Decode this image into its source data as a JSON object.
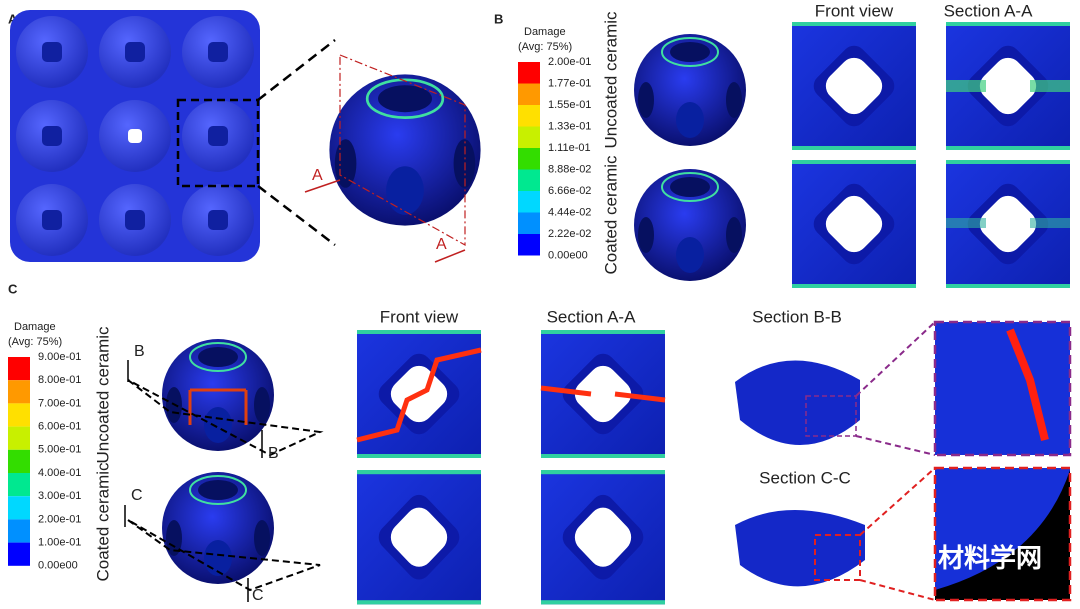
{
  "panel_a": {
    "label": "A",
    "section_marks": [
      "A",
      "A"
    ]
  },
  "panel_b": {
    "label": "B",
    "legend": {
      "title": "Damage",
      "subtitle": "(Avg: 75%)",
      "labels": [
        "2.00e-01",
        "1.77e-01",
        "1.55e-01",
        "1.33e-01",
        "1.11e-01",
        "8.88e-02",
        "6.66e-02",
        "4.44e-02",
        "2.22e-02",
        "0.00e00"
      ],
      "colors": [
        "#ff0000",
        "#ff9900",
        "#ffe000",
        "#c8f000",
        "#33dd00",
        "#00e890",
        "#00d8ff",
        "#0090ff",
        "#0000ff"
      ]
    },
    "rows": [
      "Uncoated ceramic",
      "Coated ceramic"
    ],
    "columns": [
      "Front view",
      "Section A-A"
    ]
  },
  "panel_c": {
    "label": "C",
    "legend": {
      "title": "Damage",
      "subtitle": "(Avg: 75%)",
      "labels": [
        "9.00e-01",
        "8.00e-01",
        "7.00e-01",
        "6.00e-01",
        "5.00e-01",
        "4.00e-01",
        "3.00e-01",
        "2.00e-01",
        "1.00e-01",
        "0.00e00"
      ],
      "colors": [
        "#ff0000",
        "#ff9900",
        "#ffe000",
        "#c8f000",
        "#33dd00",
        "#00e890",
        "#00d8ff",
        "#0090ff",
        "#0000ff"
      ]
    },
    "rows": [
      "Uncoated ceramic",
      "Coated ceramic"
    ],
    "columns": [
      "Front view",
      "Section A-A",
      "Section B-B",
      "Section C-C"
    ],
    "section_marks": [
      "B",
      "B",
      "C",
      "C"
    ]
  },
  "watermark": "材料学网"
}
